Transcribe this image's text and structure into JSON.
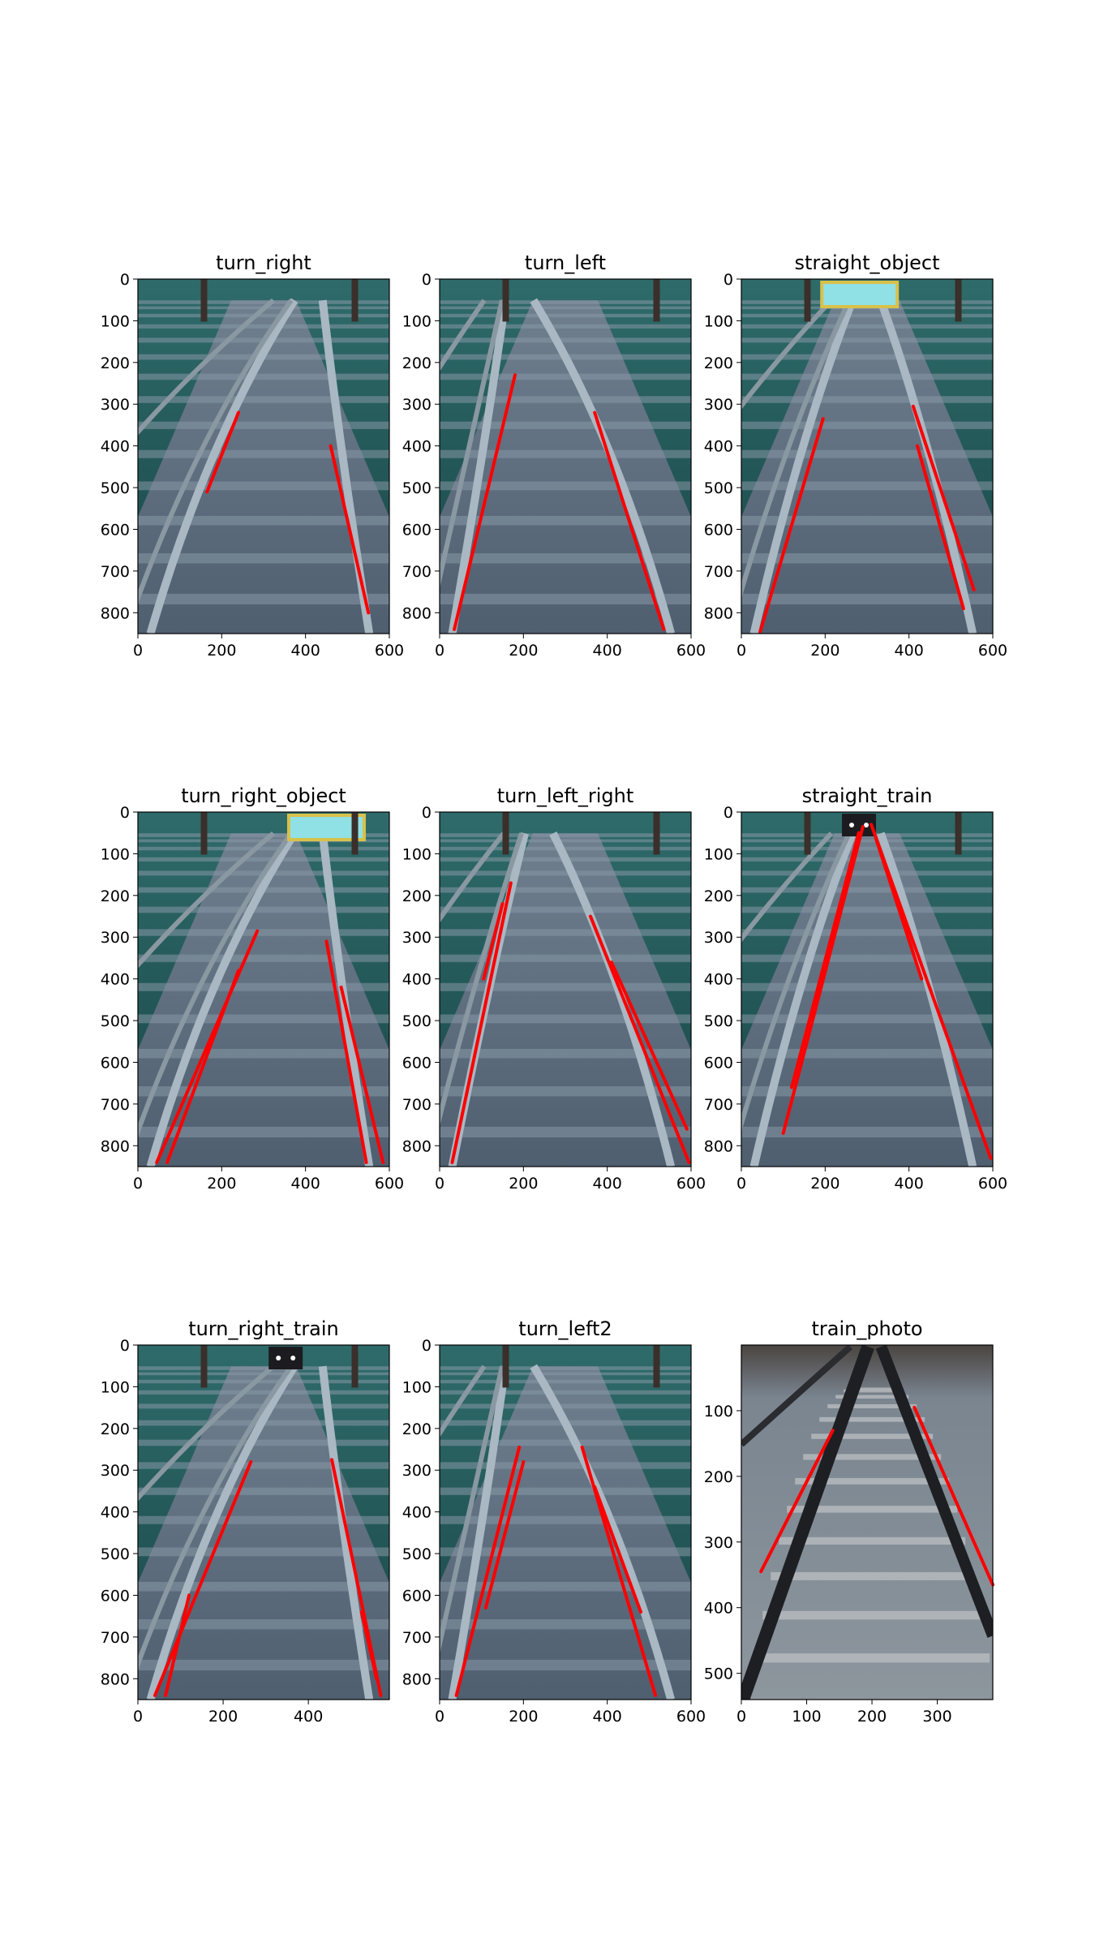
{
  "chart_data": [
    {
      "type": "image",
      "title": "turn_right",
      "scene": "curve_right",
      "xlim": [
        0,
        600
      ],
      "ylim": [
        0,
        850
      ],
      "xticks": [
        0,
        200,
        400,
        600
      ],
      "yticks": [
        0,
        100,
        200,
        300,
        400,
        500,
        600,
        700,
        800
      ],
      "detected_lines": [
        {
          "x1": 240,
          "y1": 320,
          "x2": 165,
          "y2": 510
        },
        {
          "x1": 460,
          "y1": 400,
          "x2": 550,
          "y2": 800
        }
      ]
    },
    {
      "type": "image",
      "title": "turn_left",
      "scene": "curve_left",
      "xlim": [
        0,
        600
      ],
      "ylim": [
        0,
        850
      ],
      "xticks": [
        0,
        200,
        400,
        600
      ],
      "yticks": [
        0,
        100,
        200,
        300,
        400,
        500,
        600,
        700,
        800
      ],
      "detected_lines": [
        {
          "x1": 180,
          "y1": 230,
          "x2": 35,
          "y2": 840
        },
        {
          "x1": 370,
          "y1": 320,
          "x2": 535,
          "y2": 840
        }
      ]
    },
    {
      "type": "image",
      "title": "straight_object",
      "scene": "straight_object",
      "xlim": [
        0,
        600
      ],
      "ylim": [
        0,
        850
      ],
      "xticks": [
        0,
        200,
        400,
        600
      ],
      "yticks": [
        0,
        100,
        200,
        300,
        400,
        500,
        600,
        700,
        800
      ],
      "detected_lines": [
        {
          "x1": 195,
          "y1": 335,
          "x2": 45,
          "y2": 845
        },
        {
          "x1": 410,
          "y1": 305,
          "x2": 555,
          "y2": 745
        },
        {
          "x1": 420,
          "y1": 400,
          "x2": 530,
          "y2": 790
        }
      ]
    },
    {
      "type": "image",
      "title": "turn_right_object",
      "scene": "curve_right_object",
      "xlim": [
        0,
        600
      ],
      "ylim": [
        0,
        850
      ],
      "xticks": [
        0,
        200,
        400,
        600
      ],
      "yticks": [
        0,
        100,
        200,
        300,
        400,
        500,
        600,
        700,
        800
      ],
      "detected_lines": [
        {
          "x1": 285,
          "y1": 285,
          "x2": 45,
          "y2": 840
        },
        {
          "x1": 240,
          "y1": 380,
          "x2": 70,
          "y2": 840
        },
        {
          "x1": 450,
          "y1": 310,
          "x2": 545,
          "y2": 840
        },
        {
          "x1": 485,
          "y1": 420,
          "x2": 585,
          "y2": 840
        }
      ]
    },
    {
      "type": "image",
      "title": "turn_left_right",
      "scene": "curve_mixed",
      "xlim": [
        0,
        600
      ],
      "ylim": [
        0,
        850
      ],
      "xticks": [
        0,
        200,
        400,
        600
      ],
      "yticks": [
        0,
        100,
        200,
        300,
        400,
        500,
        600,
        700,
        800
      ],
      "detected_lines": [
        {
          "x1": 170,
          "y1": 170,
          "x2": 30,
          "y2": 840
        },
        {
          "x1": 150,
          "y1": 220,
          "x2": 105,
          "y2": 400
        },
        {
          "x1": 360,
          "y1": 250,
          "x2": 595,
          "y2": 840
        },
        {
          "x1": 410,
          "y1": 360,
          "x2": 590,
          "y2": 760
        }
      ]
    },
    {
      "type": "image",
      "title": "straight_train",
      "scene": "straight_train",
      "xlim": [
        0,
        600
      ],
      "ylim": [
        0,
        850
      ],
      "xticks": [
        0,
        200,
        400,
        600
      ],
      "yticks": [
        0,
        100,
        200,
        300,
        400,
        500,
        600,
        700,
        800
      ],
      "detected_lines": [
        {
          "x1": 290,
          "y1": 35,
          "x2": 100,
          "y2": 770
        },
        {
          "x1": 280,
          "y1": 50,
          "x2": 120,
          "y2": 660
        },
        {
          "x1": 310,
          "y1": 30,
          "x2": 595,
          "y2": 830
        },
        {
          "x1": 320,
          "y1": 60,
          "x2": 430,
          "y2": 400
        }
      ]
    },
    {
      "type": "image",
      "title": "turn_right_train",
      "scene": "curve_right_train",
      "xlim": [
        0,
        590
      ],
      "ylim": [
        0,
        850
      ],
      "xticks": [
        0,
        200,
        400
      ],
      "yticks": [
        0,
        100,
        200,
        300,
        400,
        500,
        600,
        700,
        800
      ],
      "detected_lines": [
        {
          "x1": 265,
          "y1": 280,
          "x2": 40,
          "y2": 840
        },
        {
          "x1": 120,
          "y1": 600,
          "x2": 65,
          "y2": 840
        },
        {
          "x1": 455,
          "y1": 275,
          "x2": 570,
          "y2": 840
        },
        {
          "x1": 525,
          "y1": 640,
          "x2": 560,
          "y2": 800
        }
      ]
    },
    {
      "type": "image",
      "title": "turn_left2",
      "scene": "curve_left2",
      "xlim": [
        0,
        600
      ],
      "ylim": [
        0,
        850
      ],
      "xticks": [
        0,
        200,
        400,
        600
      ],
      "yticks": [
        0,
        100,
        200,
        300,
        400,
        500,
        600,
        700,
        800
      ],
      "detected_lines": [
        {
          "x1": 190,
          "y1": 245,
          "x2": 40,
          "y2": 840
        },
        {
          "x1": 200,
          "y1": 280,
          "x2": 110,
          "y2": 630
        },
        {
          "x1": 340,
          "y1": 245,
          "x2": 515,
          "y2": 840
        },
        {
          "x1": 370,
          "y1": 340,
          "x2": 480,
          "y2": 640
        }
      ]
    },
    {
      "type": "image",
      "title": "train_photo",
      "scene": "photo",
      "xlim": [
        0,
        385
      ],
      "ylim": [
        0,
        540
      ],
      "xticks": [
        0,
        100,
        200,
        300
      ],
      "yticks": [
        100,
        200,
        300,
        400,
        500
      ],
      "detected_lines": [
        {
          "x1": 140,
          "y1": 130,
          "x2": 30,
          "y2": 345
        },
        {
          "x1": 265,
          "y1": 95,
          "x2": 385,
          "y2": 365
        }
      ]
    }
  ]
}
